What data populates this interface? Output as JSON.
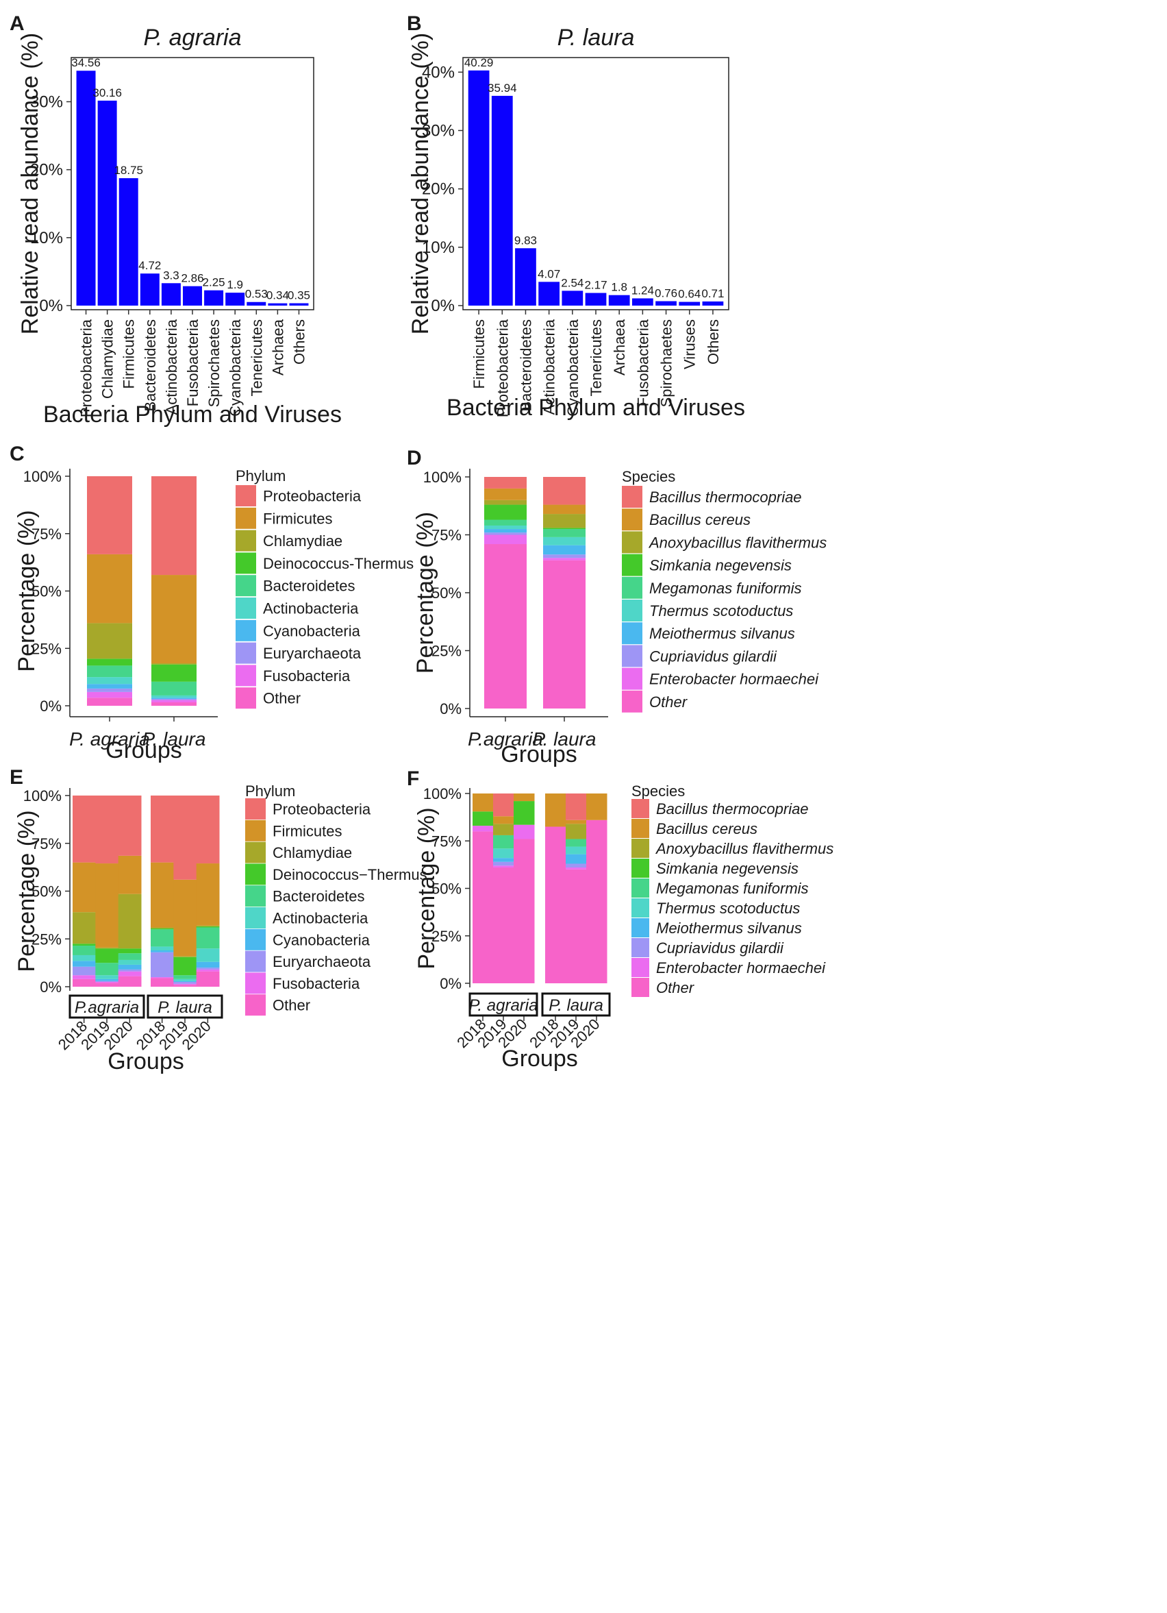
{
  "panels": {
    "A": "A",
    "B": "B",
    "C": "C",
    "D": "D",
    "E": "E",
    "F": "F"
  },
  "colors": {
    "bar": "#0b00ff",
    "phylum": {
      "Proteobacteria": "#ee6e6e",
      "Firmicutes": "#d39327",
      "Chlamydiae": "#a6a82a",
      "Deinococcus-Thermus": "#44c92a",
      "Bacteroidetes": "#45d58a",
      "Actinobacteria": "#4fd6c8",
      "Cyanobacteria": "#4ab8ef",
      "Euryarchaeota": "#9e95f5",
      "Fusobacteria": "#eb6cf0",
      "Other": "#f763c9"
    },
    "species": {
      "Bacillus thermocopriae": "#ee6e6e",
      "Bacillus cereus": "#d39327",
      "Anoxybacillus flavithermus": "#a6a82a",
      "Simkania negevensis": "#44c92a",
      "Megamonas funiformis": "#45d58a",
      "Thermus scotoductus": "#4fd6c8",
      "Meiothermus silvanus": "#4ab8ef",
      "Cupriavidus gilardii": "#9e95f5",
      "Enterobacter hormaechei": "#eb6cf0",
      "Other": "#f763c9"
    }
  },
  "chart_data": [
    {
      "id": "A",
      "type": "bar",
      "title": "P. agraria",
      "xlabel": "Bacteria Phylum and Viruses",
      "ylabel": "Relative read abundance (%)",
      "ylim": [
        0,
        36.5
      ],
      "yticks": [
        "0%",
        "10%",
        "20%",
        "30%"
      ],
      "categories": [
        "Proteobacteria",
        "Chlamydiae",
        "Firmicutes",
        "Bacteroidetes",
        "Actinobacteria",
        "Fusobacteria",
        "Spirochaetes",
        "Cyanobacteria",
        "Tenericutes",
        "Archaea",
        "Others"
      ],
      "values": [
        34.56,
        30.16,
        18.75,
        4.72,
        3.3,
        2.86,
        2.25,
        1.9,
        0.53,
        0.34,
        0.35
      ],
      "labels": [
        "34.56",
        "30.16",
        "18.75",
        "4.72",
        "3.3",
        "2.86",
        "2.25",
        "1.9",
        "0.53",
        "0.34",
        "0.35"
      ]
    },
    {
      "id": "B",
      "type": "bar",
      "title": "P. laura",
      "xlabel": "Bacteria Phylum and Viruses",
      "ylabel": "Relative read abundance (%)",
      "ylim": [
        0,
        42.5
      ],
      "yticks": [
        "0%",
        "10%",
        "20%",
        "30%",
        "40%"
      ],
      "categories": [
        "Firmicutes",
        "Proteobacteria",
        "Bacteroidetes",
        "Actinobacteria",
        "Cyanobacteria",
        "Tenericutes",
        "Archaea",
        "Fusobacteria",
        "Spirochaetes",
        "Viruses",
        "Others"
      ],
      "values": [
        40.29,
        35.94,
        9.83,
        4.07,
        2.54,
        2.17,
        1.8,
        1.24,
        0.76,
        0.64,
        0.71
      ],
      "labels": [
        "40.29",
        "35.94",
        "9.83",
        "4.07",
        "2.54",
        "2.17",
        "1.8",
        "1.24",
        "0.76",
        "0.64",
        "0.71"
      ]
    },
    {
      "id": "C",
      "type": "stacked-bar",
      "xlabel": "Groups",
      "ylabel": "Percentage (%)",
      "ylim": [
        0,
        100
      ],
      "yticks": [
        "0%",
        "25%",
        "50%",
        "75%",
        "100%"
      ],
      "legend_title": "Phylum",
      "legend_italic": false,
      "legend": [
        "Proteobacteria",
        "Firmicutes",
        "Chlamydiae",
        "Deinococcus-Thermus",
        "Bacteroidetes",
        "Actinobacteria",
        "Cyanobacteria",
        "Euryarchaeota",
        "Fusobacteria",
        "Other"
      ],
      "categories": [
        "P. agraria",
        "P. laura"
      ],
      "series": [
        {
          "name": "Other",
          "values": [
            3.5,
            1.5
          ]
        },
        {
          "name": "Fusobacteria",
          "values": [
            2.5,
            1.0
          ]
        },
        {
          "name": "Euryarchaeota",
          "values": [
            1.5,
            0.5
          ]
        },
        {
          "name": "Cyanobacteria",
          "values": [
            2.0,
            0.5
          ]
        },
        {
          "name": "Actinobacteria",
          "values": [
            3.0,
            1.0
          ]
        },
        {
          "name": "Bacteroidetes",
          "values": [
            5.0,
            6.0
          ]
        },
        {
          "name": "Deinococcus-Thermus",
          "values": [
            3.0,
            7.5
          ]
        },
        {
          "name": "Chlamydiae",
          "values": [
            15.5,
            0.5
          ]
        },
        {
          "name": "Firmicutes",
          "values": [
            30.0,
            38.5
          ]
        },
        {
          "name": "Proteobacteria",
          "values": [
            34.0,
            43.0
          ]
        }
      ]
    },
    {
      "id": "D",
      "type": "stacked-bar",
      "xlabel": "Groups",
      "ylabel": "Percentage (%)",
      "ylim": [
        0,
        100
      ],
      "yticks": [
        "0%",
        "25%",
        "50%",
        "75%",
        "100%"
      ],
      "legend_title": "Species",
      "legend_italic": true,
      "legend": [
        "Bacillus thermocopriae",
        "Bacillus cereus",
        "Anoxybacillus flavithermus",
        "Simkania negevensis",
        "Megamonas funiformis",
        "Thermus scotoductus",
        "Meiothermus silvanus",
        "Cupriavidus gilardii",
        "Enterobacter hormaechei",
        "Other"
      ],
      "categories": [
        "P.agraria",
        "P. laura"
      ],
      "series": [
        {
          "name": "Other",
          "values": [
            71.0,
            64.0
          ]
        },
        {
          "name": "Enterobacter hormaechei",
          "values": [
            4.0,
            1.0
          ]
        },
        {
          "name": "Cupriavidus gilardii",
          "values": [
            1.0,
            1.5
          ]
        },
        {
          "name": "Meiothermus silvanus",
          "values": [
            1.5,
            4.0
          ]
        },
        {
          "name": "Thermus scotoductus",
          "values": [
            1.5,
            3.5
          ]
        },
        {
          "name": "Megamonas funiformis",
          "values": [
            2.5,
            3.5
          ]
        },
        {
          "name": "Simkania negevensis",
          "values": [
            6.5,
            0.5
          ]
        },
        {
          "name": "Anoxybacillus flavithermus",
          "values": [
            2.0,
            6.0
          ]
        },
        {
          "name": "Bacillus cereus",
          "values": [
            5.0,
            4.0
          ]
        },
        {
          "name": "Bacillus thermocopriae",
          "values": [
            5.0,
            12.0
          ]
        }
      ]
    },
    {
      "id": "E",
      "type": "stacked-bar-faceted",
      "xlabel": "Groups",
      "ylabel": "Percentage (%)",
      "ylim": [
        0,
        100
      ],
      "yticks": [
        "0%",
        "25%",
        "50%",
        "75%",
        "100%"
      ],
      "legend_title": "Phylum",
      "legend_italic": false,
      "legend": [
        "Proteobacteria",
        "Firmicutes",
        "Chlamydiae",
        "Deinococcus−Thermus",
        "Bacteroidetes",
        "Actinobacteria",
        "Cyanobacteria",
        "Euryarchaeota",
        "Fusobacteria",
        "Other"
      ],
      "facets": [
        {
          "label": "P.agraria",
          "categories": [
            "2018",
            "2019",
            "2020"
          ],
          "series": [
            {
              "name": "Other",
              "values": [
                4.0,
                2.0,
                5.5
              ]
            },
            {
              "name": "Fusobacteria",
              "values": [
                2.0,
                0.5,
                2.5
              ]
            },
            {
              "name": "Euryarchaeota",
              "values": [
                4.5,
                0.5,
                1.0
              ]
            },
            {
              "name": "Cyanobacteria",
              "values": [
                3.0,
                1.0,
                2.5
              ]
            },
            {
              "name": "Actinobacteria",
              "values": [
                3.0,
                2.0,
                2.5
              ]
            },
            {
              "name": "Bacteroidetes",
              "values": [
                5.0,
                6.5,
                3.5
              ]
            },
            {
              "name": "Deinococcus-Thermus",
              "values": [
                1.0,
                7.5,
                2.5
              ]
            },
            {
              "name": "Chlamydiae",
              "values": [
                16.5,
                0.5,
                28.5
              ]
            },
            {
              "name": "Firmicutes",
              "values": [
                26.0,
                44.0,
                20.0
              ]
            },
            {
              "name": "Proteobacteria",
              "values": [
                35.0,
                35.5,
                31.5
              ]
            }
          ]
        },
        {
          "label": "P. laura",
          "categories": [
            "2018",
            "2019",
            "2020"
          ],
          "series": [
            {
              "name": "Other",
              "values": [
                4.5,
                1.0,
                8.0
              ]
            },
            {
              "name": "Fusobacteria",
              "values": [
                0.5,
                0.5,
                1.0
              ]
            },
            {
              "name": "Euryarchaeota",
              "values": [
                13.0,
                1.0,
                1.0
              ]
            },
            {
              "name": "Cyanobacteria",
              "values": [
                1.0,
                0.5,
                3.0
              ]
            },
            {
              "name": "Actinobacteria",
              "values": [
                2.0,
                1.0,
                7.0
              ]
            },
            {
              "name": "Bacteroidetes",
              "values": [
                9.0,
                2.0,
                11.0
              ]
            },
            {
              "name": "Deinococcus-Thermus",
              "values": [
                0.5,
                9.5,
                0.5
              ]
            },
            {
              "name": "Chlamydiae",
              "values": [
                0.5,
                0.5,
                0.5
              ]
            },
            {
              "name": "Firmicutes",
              "values": [
                34.0,
                40.0,
                32.5
              ]
            },
            {
              "name": "Proteobacteria",
              "values": [
                35.0,
                44.0,
                35.5
              ]
            }
          ]
        }
      ]
    },
    {
      "id": "F",
      "type": "stacked-bar-faceted",
      "xlabel": "Groups",
      "ylabel": "Percentage (%)",
      "ylim": [
        0,
        100
      ],
      "yticks": [
        "0%",
        "25%",
        "50%",
        "75%",
        "100%"
      ],
      "legend_title": "Species",
      "legend_italic": true,
      "legend": [
        "Bacillus thermocopriae",
        "Bacillus cereus",
        "Anoxybacillus flavithermus",
        "Simkania negevensis",
        "Megamonas funiformis",
        "Thermus scotoductus",
        "Meiothermus silvanus",
        "Cupriavidus gilardii",
        "Enterobacter hormaechei",
        "Other"
      ],
      "facets": [
        {
          "label": "P. agraria",
          "categories": [
            "2018",
            "2019",
            "2020"
          ],
          "series": [
            {
              "name": "Other",
              "values": [
                80.0,
                61.0,
                76.0
              ]
            },
            {
              "name": "Enterobacter hormaechei",
              "values": [
                3.0,
                1.0,
                7.5
              ]
            },
            {
              "name": "Cupriavidus gilardii",
              "values": [
                0.0,
                2.0,
                0.0
              ]
            },
            {
              "name": "Meiothermus silvanus",
              "values": [
                0.0,
                2.0,
                0.0
              ]
            },
            {
              "name": "Thermus scotoductus",
              "values": [
                0.0,
                5.0,
                0.0
              ]
            },
            {
              "name": "Megamonas funiformis",
              "values": [
                0.0,
                7.0,
                0.0
              ]
            },
            {
              "name": "Simkania negevensis",
              "values": [
                7.5,
                0.0,
                12.5
              ]
            },
            {
              "name": "Anoxybacillus flavithermus",
              "values": [
                0.0,
                6.0,
                0.0
              ]
            },
            {
              "name": "Bacillus cereus",
              "values": [
                9.5,
                4.0,
                4.0
              ]
            },
            {
              "name": "Bacillus thermocopriae",
              "values": [
                0.0,
                12.0,
                0.0
              ]
            }
          ]
        },
        {
          "label": "P. laura",
          "categories": [
            "2018",
            "2019",
            "2020"
          ],
          "series": [
            {
              "name": "Other",
              "values": [
                82.5,
                60.0,
                86.0
              ]
            },
            {
              "name": "Enterobacter hormaechei",
              "values": [
                0.0,
                1.0,
                0.0
              ]
            },
            {
              "name": "Cupriavidus gilardii",
              "values": [
                0.0,
                2.0,
                0.0
              ]
            },
            {
              "name": "Meiothermus silvanus",
              "values": [
                0.0,
                5.0,
                0.0
              ]
            },
            {
              "name": "Thermus scotoductus",
              "values": [
                0.0,
                4.0,
                0.0
              ]
            },
            {
              "name": "Megamonas funiformis",
              "values": [
                0.0,
                4.0,
                0.0
              ]
            },
            {
              "name": "Simkania negevensis",
              "values": [
                0.0,
                0.0,
                0.0
              ]
            },
            {
              "name": "Anoxybacillus flavithermus",
              "values": [
                0.0,
                8.0,
                0.0
              ]
            },
            {
              "name": "Bacillus cereus",
              "values": [
                17.5,
                2.0,
                14.0
              ]
            },
            {
              "name": "Bacillus thermocopriae",
              "values": [
                0.0,
                14.0,
                0.0
              ]
            }
          ]
        }
      ]
    }
  ]
}
